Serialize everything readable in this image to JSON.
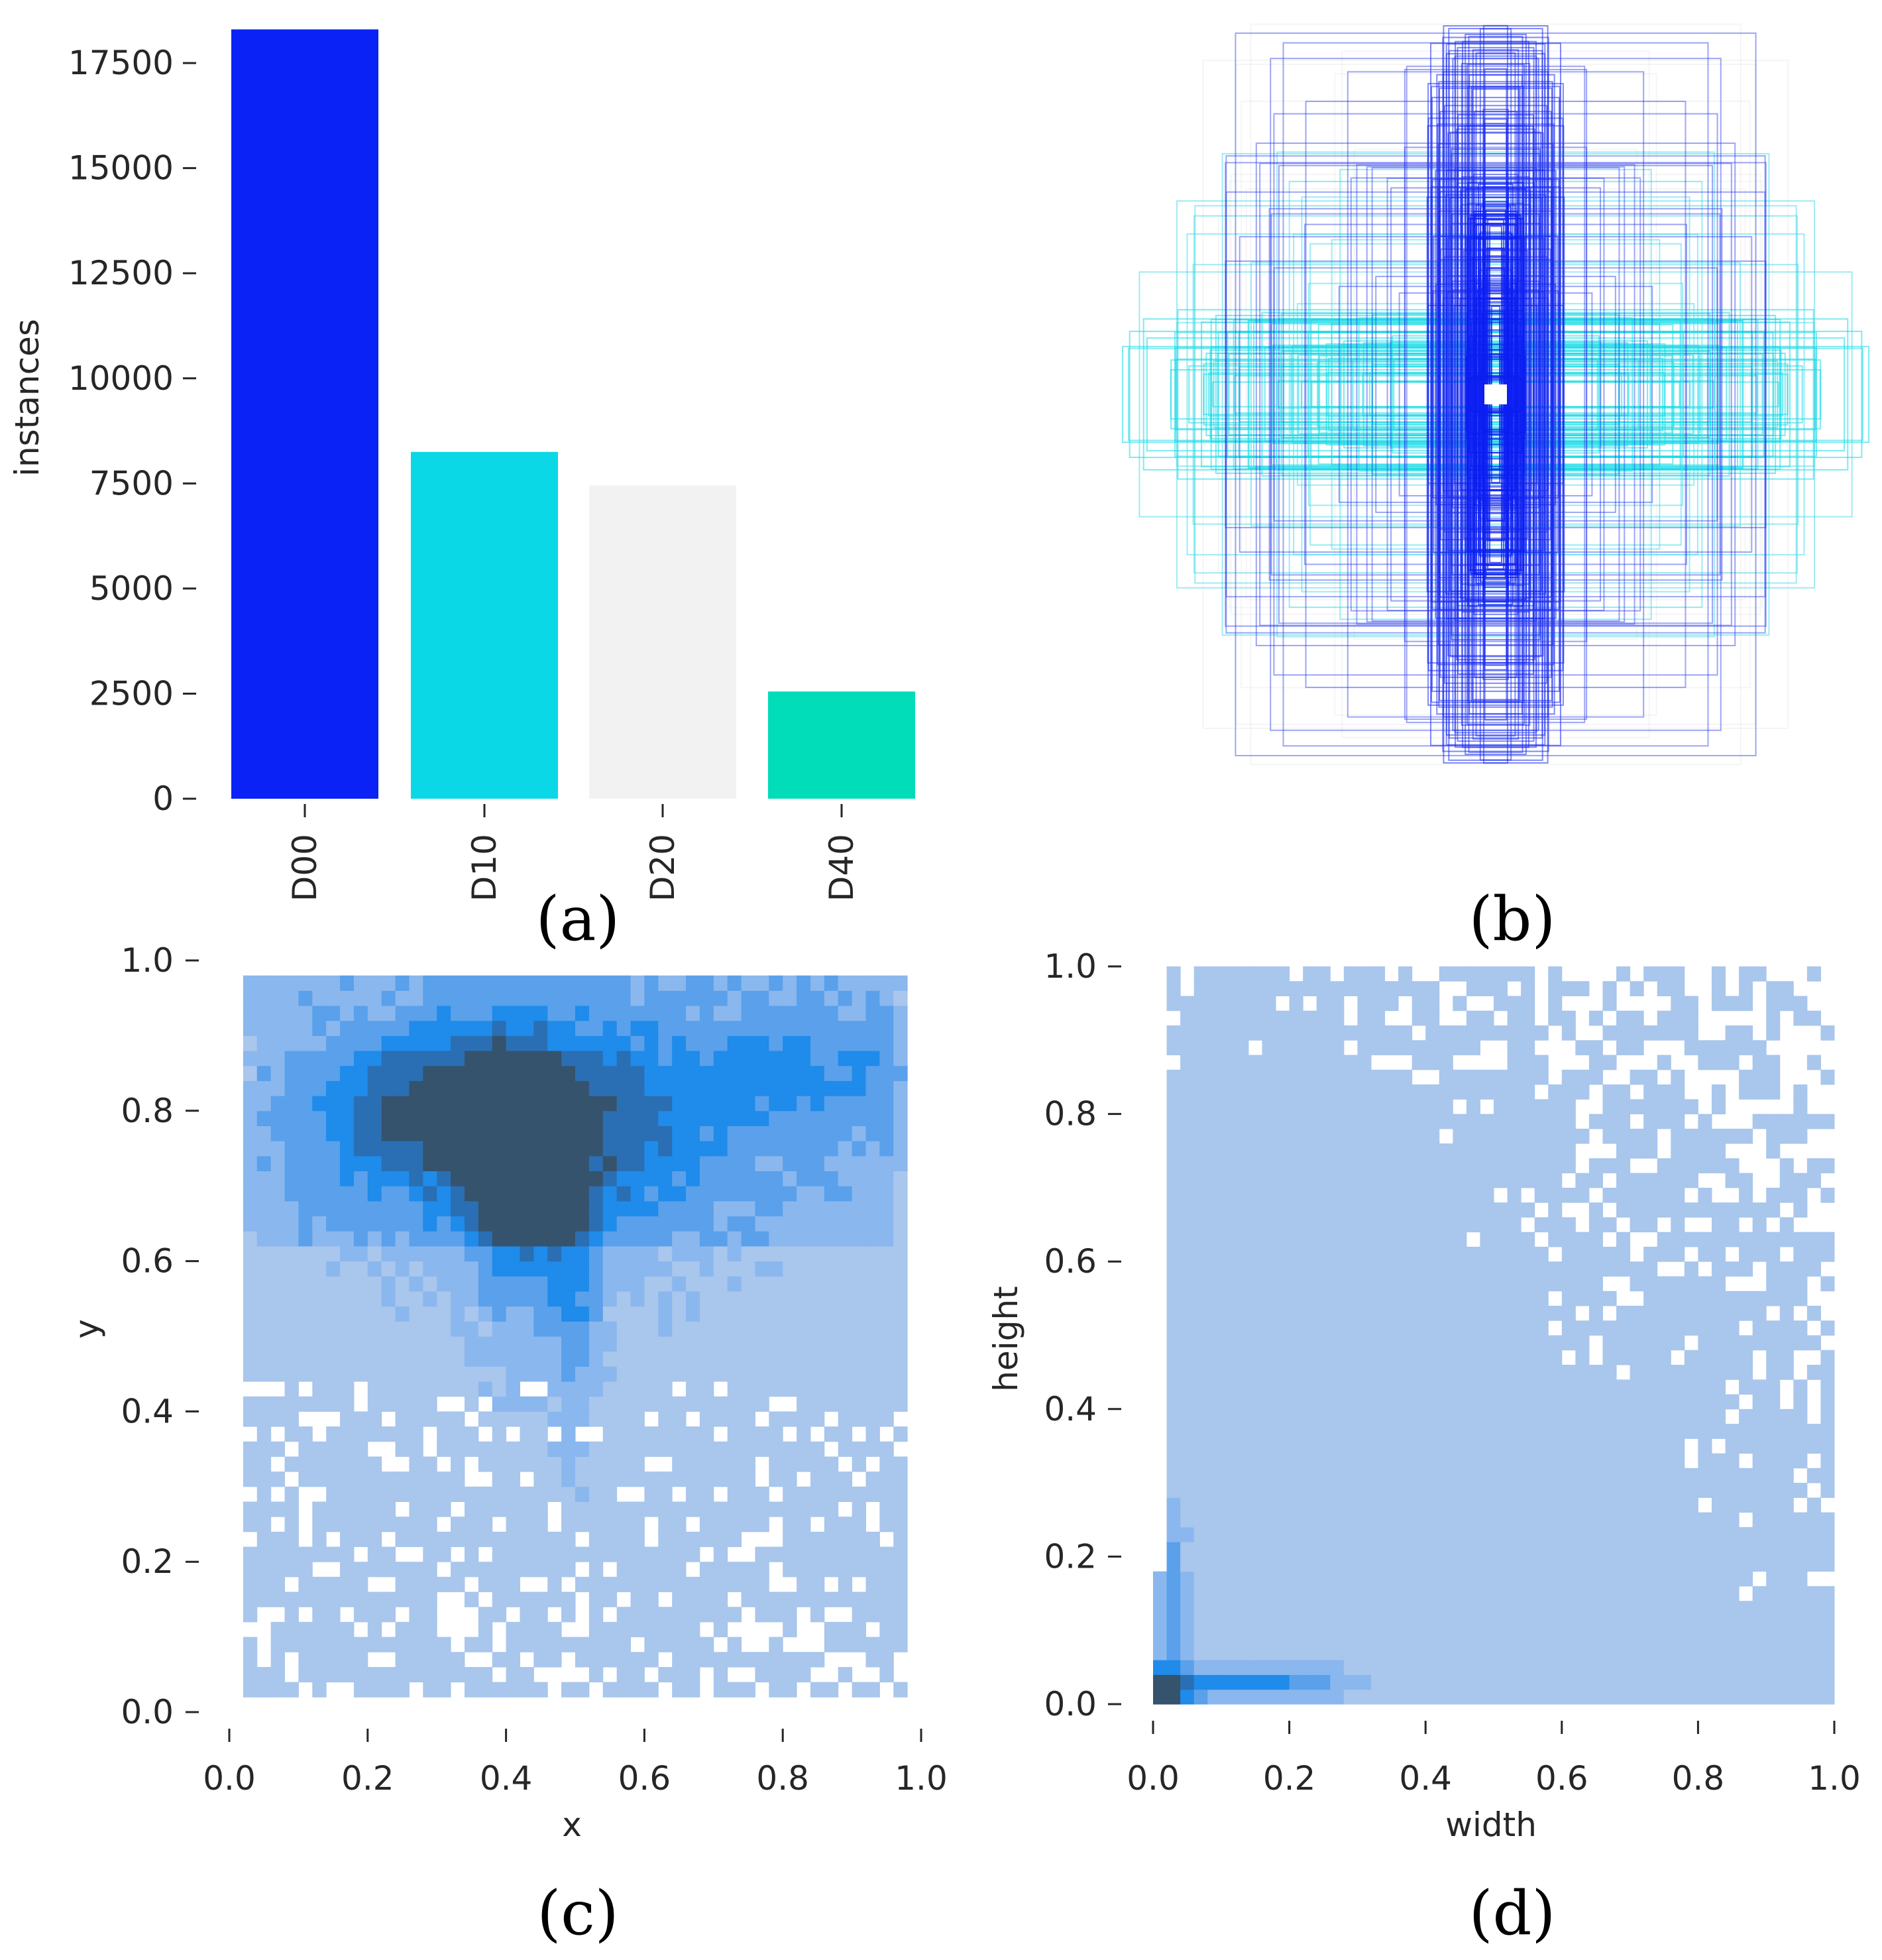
{
  "panel_labels": [
    "(a)",
    "(b)",
    "(c)",
    "(d)"
  ],
  "colors": {
    "D00": "#0a22f5",
    "D10": "#0bd8e6",
    "D20": "#f2f2f2",
    "D40": "#00ddb8",
    "hist_light": "#a9c6ec",
    "hist_mid": "#5aa0ea",
    "hist_strong": "#1f8bea",
    "hist_dark": "#36536d"
  },
  "chart_data": [
    {
      "id": "a",
      "type": "bar",
      "categories": [
        "D00",
        "D10",
        "D20",
        "D40"
      ],
      "values": [
        18300,
        8250,
        7450,
        2550
      ],
      "ylabel": "instances",
      "xlabel": "",
      "ylim": [
        0,
        18400
      ],
      "yticks": [
        0,
        2500,
        5000,
        7500,
        10000,
        12500,
        15000,
        17500
      ],
      "ytick_labels": [
        "0",
        "2500",
        "5000",
        "7500",
        "10000",
        "12500",
        "15000",
        "17500"
      ]
    },
    {
      "id": "b",
      "type": "boxes",
      "description": "bounding boxes of all labels drawn centered, colored by class",
      "box_size_range": [
        0.02,
        1.0
      ]
    },
    {
      "id": "c",
      "type": "heatmap",
      "xlabel": "x",
      "ylabel": "y",
      "xlim": [
        0,
        1
      ],
      "ylim": [
        0,
        1
      ],
      "xticks": [
        "0.0",
        "0.2",
        "0.4",
        "0.6",
        "0.8",
        "1.0"
      ],
      "yticks": [
        "0.0",
        "0.2",
        "0.4",
        "0.6",
        "0.8",
        "1.0"
      ],
      "bins": 50,
      "data_extent": [
        0.02,
        0.98
      ]
    },
    {
      "id": "d",
      "type": "heatmap",
      "xlabel": "width",
      "ylabel": "height",
      "xlim": [
        0,
        1
      ],
      "ylim": [
        0,
        1
      ],
      "xticks": [
        "0.0",
        "0.2",
        "0.4",
        "0.6",
        "0.8",
        "1.0"
      ],
      "yticks": [
        "0.0",
        "0.2",
        "0.4",
        "0.6",
        "0.8",
        "1.0"
      ],
      "bins": 50,
      "data_extent": [
        0.0,
        1.0
      ]
    }
  ]
}
